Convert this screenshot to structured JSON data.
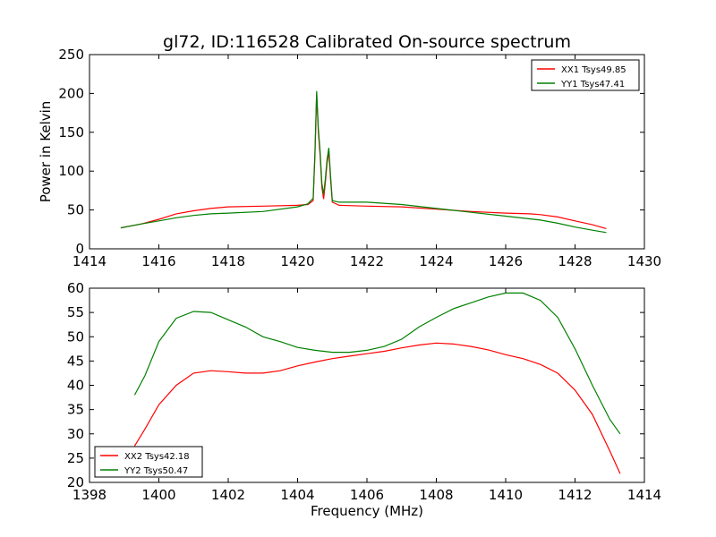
{
  "figure_title": "gl72, ID:116528 Calibrated On-source spectrum",
  "colors": {
    "xx": "#ff0000",
    "yy": "#008000"
  },
  "chart_data": [
    {
      "type": "line",
      "ylabel": "Power in Kelvin",
      "xlabel": "",
      "xlim": [
        1414,
        1430
      ],
      "ylim": [
        0,
        250
      ],
      "xticks": [
        1414,
        1416,
        1418,
        1420,
        1422,
        1424,
        1426,
        1428,
        1430
      ],
      "yticks": [
        0,
        50,
        100,
        150,
        200,
        250
      ],
      "grid": false,
      "legend_position": "top-right",
      "series": [
        {
          "name": "XX1 Tsys49.85",
          "color": "#ff0000",
          "points": [
            [
              1414.9,
              27
            ],
            [
              1415.5,
              32
            ],
            [
              1416,
              38
            ],
            [
              1416.5,
              45
            ],
            [
              1417,
              49
            ],
            [
              1417.5,
              52
            ],
            [
              1418,
              54
            ],
            [
              1419,
              55
            ],
            [
              1420,
              56
            ],
            [
              1420.3,
              57
            ],
            [
              1420.45,
              62
            ],
            [
              1420.5,
              120
            ],
            [
              1420.55,
              200
            ],
            [
              1420.6,
              150
            ],
            [
              1420.65,
              120
            ],
            [
              1420.7,
              80
            ],
            [
              1420.75,
              64
            ],
            [
              1420.8,
              85
            ],
            [
              1420.85,
              110
            ],
            [
              1420.9,
              125
            ],
            [
              1420.95,
              90
            ],
            [
              1421,
              60
            ],
            [
              1421.2,
              56
            ],
            [
              1422,
              55
            ],
            [
              1423,
              54
            ],
            [
              1424,
              51
            ],
            [
              1425,
              48
            ],
            [
              1426,
              46
            ],
            [
              1426.7,
              45
            ],
            [
              1427,
              44
            ],
            [
              1427.5,
              41
            ],
            [
              1428,
              36
            ],
            [
              1428.5,
              31
            ],
            [
              1428.9,
              26
            ]
          ]
        },
        {
          "name": "YY1 Tsys47.41",
          "color": "#008000",
          "points": [
            [
              1414.9,
              27
            ],
            [
              1415.5,
              32
            ],
            [
              1416,
              36
            ],
            [
              1416.5,
              40
            ],
            [
              1417,
              43
            ],
            [
              1417.5,
              45
            ],
            [
              1418,
              46
            ],
            [
              1419,
              48
            ],
            [
              1420,
              54
            ],
            [
              1420.3,
              58
            ],
            [
              1420.45,
              65
            ],
            [
              1420.5,
              125
            ],
            [
              1420.55,
              203
            ],
            [
              1420.6,
              155
            ],
            [
              1420.65,
              125
            ],
            [
              1420.7,
              85
            ],
            [
              1420.75,
              70
            ],
            [
              1420.8,
              90
            ],
            [
              1420.85,
              115
            ],
            [
              1420.9,
              130
            ],
            [
              1420.95,
              95
            ],
            [
              1421,
              62
            ],
            [
              1421.2,
              60
            ],
            [
              1422,
              60
            ],
            [
              1423,
              57
            ],
            [
              1424,
              52
            ],
            [
              1425,
              47
            ],
            [
              1426,
              42
            ],
            [
              1427,
              37
            ],
            [
              1427.5,
              33
            ],
            [
              1428,
              28
            ],
            [
              1428.5,
              24
            ],
            [
              1428.9,
              21
            ]
          ]
        }
      ]
    },
    {
      "type": "line",
      "ylabel": "",
      "xlabel": "Frequency (MHz)",
      "xlim": [
        1398,
        1414
      ],
      "ylim": [
        20,
        60
      ],
      "xticks": [
        1398,
        1400,
        1402,
        1404,
        1406,
        1408,
        1410,
        1412,
        1414
      ],
      "yticks": [
        20,
        25,
        30,
        35,
        40,
        45,
        50,
        55,
        60
      ],
      "grid": false,
      "legend_position": "bottom-left",
      "series": [
        {
          "name": "XX2 Tsys42.18",
          "color": "#ff0000",
          "points": [
            [
              1399.3,
              27.5
            ],
            [
              1399.6,
              31
            ],
            [
              1400,
              36
            ],
            [
              1400.5,
              40
            ],
            [
              1401,
              42.5
            ],
            [
              1401.5,
              43
            ],
            [
              1402,
              42.8
            ],
            [
              1402.5,
              42.5
            ],
            [
              1403,
              42.5
            ],
            [
              1403.5,
              43
            ],
            [
              1404,
              44
            ],
            [
              1404.5,
              44.8
            ],
            [
              1405,
              45.5
            ],
            [
              1405.5,
              46
            ],
            [
              1406,
              46.5
            ],
            [
              1406.5,
              47
            ],
            [
              1407,
              47.7
            ],
            [
              1407.5,
              48.3
            ],
            [
              1408,
              48.7
            ],
            [
              1408.5,
              48.5
            ],
            [
              1409,
              48
            ],
            [
              1409.5,
              47.3
            ],
            [
              1410,
              46.3
            ],
            [
              1410.5,
              45.5
            ],
            [
              1411,
              44.3
            ],
            [
              1411.5,
              42.5
            ],
            [
              1412,
              39
            ],
            [
              1412.5,
              34
            ],
            [
              1413,
              26.5
            ],
            [
              1413.3,
              21.8
            ]
          ]
        },
        {
          "name": "YY2 Tsys50.47",
          "color": "#008000",
          "points": [
            [
              1399.3,
              38
            ],
            [
              1399.6,
              42
            ],
            [
              1400,
              49
            ],
            [
              1400.5,
              53.8
            ],
            [
              1401,
              55.2
            ],
            [
              1401.5,
              55
            ],
            [
              1402,
              53.5
            ],
            [
              1402.5,
              52
            ],
            [
              1403,
              50
            ],
            [
              1403.5,
              49
            ],
            [
              1404,
              47.8
            ],
            [
              1404.5,
              47.2
            ],
            [
              1405,
              46.8
            ],
            [
              1405.5,
              46.8
            ],
            [
              1406,
              47.2
            ],
            [
              1406.5,
              48
            ],
            [
              1407,
              49.5
            ],
            [
              1407.5,
              52
            ],
            [
              1408,
              54
            ],
            [
              1408.5,
              55.8
            ],
            [
              1409,
              57
            ],
            [
              1409.5,
              58.2
            ],
            [
              1410,
              59
            ],
            [
              1410.5,
              59
            ],
            [
              1411,
              57.5
            ],
            [
              1411.5,
              54
            ],
            [
              1412,
              47.5
            ],
            [
              1412.5,
              40
            ],
            [
              1413,
              33
            ],
            [
              1413.3,
              30
            ]
          ]
        }
      ]
    }
  ]
}
